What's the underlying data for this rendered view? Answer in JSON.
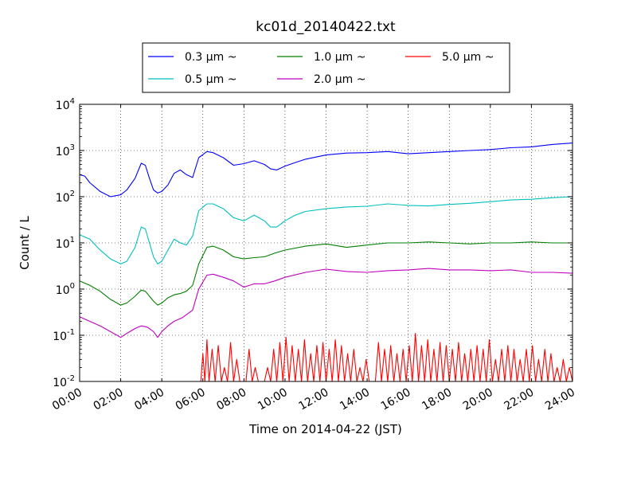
{
  "chart_data": {
    "type": "line",
    "title": "kc01d_20140422.txt",
    "xlabel": "Time on 2014-04-22 (JST)",
    "ylabel": "Count / L",
    "x_ticks": [
      "00:00",
      "02:00",
      "04:00",
      "06:00",
      "08:00",
      "10:00",
      "12:00",
      "14:00",
      "16:00",
      "18:00",
      "20:00",
      "22:00",
      "24:00"
    ],
    "xlim": [
      0,
      24
    ],
    "y_scale": "log",
    "ylim": [
      0.01,
      10000
    ],
    "y_tick_base": "10",
    "y_tick_exponents": [
      "-2",
      "-1",
      "0",
      "1",
      "2",
      "3",
      "4"
    ],
    "grid": true,
    "legend_position": "top",
    "series": [
      {
        "name": "0.3 μm ~",
        "color": "#0000ff",
        "x": [
          0,
          0.25,
          0.5,
          1.0,
          1.5,
          2.0,
          2.3,
          2.7,
          3.0,
          3.2,
          3.4,
          3.6,
          3.8,
          4.0,
          4.3,
          4.6,
          4.9,
          5.2,
          5.5,
          5.8,
          6.2,
          6.5,
          7.0,
          7.5,
          8.0,
          8.5,
          9.0,
          9.3,
          9.6,
          10.0,
          10.5,
          11.0,
          12.0,
          13.0,
          14.0,
          15.0,
          16.0,
          17.0,
          18.0,
          19.0,
          20.0,
          21.0,
          22.0,
          23.0,
          24.0
        ],
        "values": [
          300,
          280,
          200,
          130,
          100,
          110,
          140,
          250,
          530,
          480,
          250,
          140,
          120,
          130,
          180,
          320,
          380,
          300,
          260,
          700,
          950,
          900,
          700,
          480,
          520,
          600,
          500,
          400,
          380,
          460,
          550,
          650,
          800,
          880,
          900,
          950,
          850,
          900,
          950,
          1000,
          1050,
          1150,
          1200,
          1350,
          1450
        ]
      },
      {
        "name": "0.5 μm ~",
        "color": "#00bfbf",
        "x": [
          0,
          0.5,
          1.0,
          1.5,
          2.0,
          2.3,
          2.7,
          3.0,
          3.2,
          3.4,
          3.6,
          3.8,
          4.0,
          4.3,
          4.6,
          4.9,
          5.2,
          5.5,
          5.8,
          6.2,
          6.5,
          7.0,
          7.5,
          8.0,
          8.5,
          9.0,
          9.3,
          9.6,
          10.0,
          10.5,
          11.0,
          12.0,
          13.0,
          14.0,
          15.0,
          16.0,
          17.0,
          18.0,
          19.0,
          20.0,
          21.0,
          22.0,
          23.0,
          24.0
        ],
        "values": [
          15,
          12,
          7,
          4.5,
          3.5,
          4,
          8,
          22,
          20,
          10,
          5,
          3.5,
          4,
          7,
          12,
          10,
          9,
          14,
          50,
          70,
          70,
          55,
          35,
          30,
          40,
          30,
          22,
          22,
          30,
          40,
          48,
          55,
          60,
          62,
          70,
          65,
          63,
          68,
          72,
          78,
          85,
          88,
          95,
          100
        ]
      },
      {
        "name": "1.0 μm ~",
        "color": "#008000",
        "x": [
          0,
          0.5,
          1.0,
          1.5,
          2.0,
          2.3,
          2.7,
          3.0,
          3.2,
          3.4,
          3.6,
          3.8,
          4.0,
          4.3,
          4.6,
          4.9,
          5.2,
          5.5,
          5.8,
          6.2,
          6.5,
          7.0,
          7.5,
          8.0,
          8.5,
          9.0,
          9.5,
          10.0,
          11.0,
          12.0,
          13.0,
          14.0,
          15.0,
          16.0,
          17.0,
          18.0,
          19.0,
          20.0,
          21.0,
          22.0,
          23.0,
          24.0
        ],
        "values": [
          1.5,
          1.2,
          0.9,
          0.6,
          0.45,
          0.5,
          0.7,
          0.95,
          0.9,
          0.7,
          0.55,
          0.45,
          0.5,
          0.65,
          0.75,
          0.8,
          0.9,
          1.2,
          3.5,
          8,
          8.5,
          7,
          5,
          4.5,
          4.8,
          5,
          6,
          7,
          8.5,
          9.5,
          8,
          9,
          10,
          10,
          10.5,
          10,
          9.5,
          10,
          10,
          10.5,
          10,
          10
        ]
      },
      {
        "name": "2.0 μm ~",
        "color": "#bf00bf",
        "x": [
          0,
          0.5,
          1.0,
          1.5,
          2.0,
          2.3,
          2.7,
          3.0,
          3.3,
          3.6,
          3.8,
          4.0,
          4.3,
          4.6,
          5.0,
          5.5,
          5.8,
          6.2,
          6.5,
          7.0,
          7.5,
          8.0,
          8.5,
          9.0,
          9.5,
          10.0,
          11.0,
          12.0,
          13.0,
          14.0,
          15.0,
          16.0,
          17.0,
          18.0,
          19.0,
          20.0,
          21.0,
          22.0,
          23.0,
          24.0
        ],
        "values": [
          0.25,
          0.2,
          0.16,
          0.12,
          0.09,
          0.11,
          0.14,
          0.16,
          0.15,
          0.12,
          0.09,
          0.12,
          0.16,
          0.2,
          0.24,
          0.35,
          1.0,
          2.0,
          2.1,
          1.8,
          1.5,
          1.1,
          1.3,
          1.3,
          1.5,
          1.8,
          2.3,
          2.7,
          2.4,
          2.3,
          2.5,
          2.6,
          2.8,
          2.6,
          2.6,
          2.5,
          2.6,
          2.3,
          2.3,
          2.2
        ]
      },
      {
        "name": "5.0 μm ~",
        "color": "#ff0000",
        "x": [
          0,
          0.5,
          1.0,
          1.5,
          2.0,
          2.5,
          3.0,
          3.5,
          4.0,
          4.5,
          5.0,
          5.5,
          5.9,
          6.0,
          6.1,
          6.2,
          6.3,
          6.45,
          6.6,
          6.75,
          6.9,
          7.05,
          7.2,
          7.35,
          7.5,
          7.65,
          7.8,
          7.95,
          8.1,
          8.25,
          8.4,
          8.55,
          8.7,
          8.85,
          9.0,
          9.15,
          9.3,
          9.45,
          9.6,
          9.75,
          9.9,
          10.05,
          10.2,
          10.35,
          10.5,
          10.65,
          10.8,
          10.95,
          11.1,
          11.25,
          11.4,
          11.55,
          11.7,
          11.85,
          12.0,
          12.15,
          12.3,
          12.45,
          12.6,
          12.75,
          12.9,
          13.05,
          13.2,
          13.35,
          13.5,
          13.65,
          13.8,
          13.95,
          14.1,
          14.25,
          14.4,
          14.55,
          14.7,
          14.85,
          15.0,
          15.15,
          15.3,
          15.45,
          15.6,
          15.75,
          15.9,
          16.05,
          16.2,
          16.35,
          16.5,
          16.65,
          16.8,
          16.95,
          17.1,
          17.25,
          17.4,
          17.55,
          17.7,
          17.85,
          18.0,
          18.15,
          18.3,
          18.45,
          18.6,
          18.75,
          18.9,
          19.05,
          19.2,
          19.35,
          19.5,
          19.65,
          19.8,
          19.95,
          20.1,
          20.25,
          20.4,
          20.55,
          20.7,
          20.85,
          21.0,
          21.15,
          21.3,
          21.45,
          21.6,
          21.75,
          21.9,
          22.05,
          22.2,
          22.35,
          22.5,
          22.65,
          22.8,
          22.95,
          23.1,
          23.25,
          23.4,
          23.55,
          23.7,
          23.85,
          24.0
        ],
        "values": [
          0.01,
          0.01,
          0.01,
          0.01,
          0.01,
          0.01,
          0.01,
          0.01,
          0.01,
          0.01,
          0.01,
          0.01,
          0.01,
          0.04,
          0.01,
          0.08,
          0.01,
          0.05,
          0.01,
          0.06,
          0.01,
          0.02,
          0.01,
          0.07,
          0.01,
          0.03,
          0.01,
          0.01,
          0.01,
          0.05,
          0.01,
          0.02,
          0.01,
          0.01,
          0.01,
          0.02,
          0.01,
          0.05,
          0.01,
          0.07,
          0.01,
          0.09,
          0.01,
          0.06,
          0.01,
          0.05,
          0.01,
          0.08,
          0.01,
          0.04,
          0.01,
          0.06,
          0.01,
          0.07,
          0.01,
          0.05,
          0.01,
          0.08,
          0.01,
          0.06,
          0.01,
          0.04,
          0.01,
          0.05,
          0.01,
          0.02,
          0.01,
          0.03,
          0.01,
          0.01,
          0.01,
          0.07,
          0.01,
          0.05,
          0.01,
          0.06,
          0.01,
          0.04,
          0.01,
          0.05,
          0.01,
          0.06,
          0.01,
          0.11,
          0.01,
          0.06,
          0.01,
          0.08,
          0.01,
          0.05,
          0.01,
          0.07,
          0.01,
          0.06,
          0.01,
          0.05,
          0.01,
          0.07,
          0.01,
          0.04,
          0.01,
          0.05,
          0.01,
          0.06,
          0.01,
          0.05,
          0.01,
          0.08,
          0.01,
          0.03,
          0.01,
          0.05,
          0.01,
          0.06,
          0.01,
          0.05,
          0.01,
          0.03,
          0.01,
          0.05,
          0.01,
          0.06,
          0.01,
          0.03,
          0.01,
          0.05,
          0.01,
          0.04,
          0.01,
          0.02,
          0.01,
          0.03,
          0.01,
          0.02,
          0.01
        ]
      }
    ]
  }
}
